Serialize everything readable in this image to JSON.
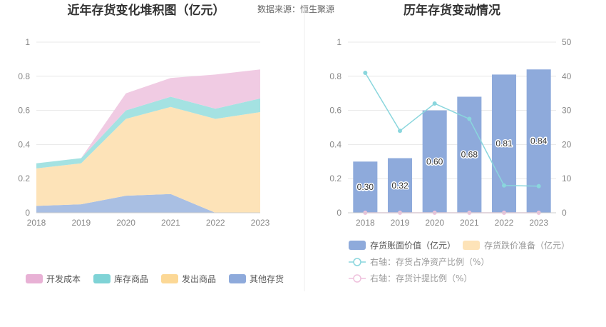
{
  "source_text": "数据来源：恒生聚源",
  "chart_data": [
    {
      "type": "area",
      "title": "近年存货变化堆积图（亿元）",
      "categories": [
        "2018",
        "2019",
        "2020",
        "2021",
        "2022",
        "2023"
      ],
      "ylim": [
        0,
        1
      ],
      "yticks": [
        "0",
        "0.2",
        "0.4",
        "0.6",
        "0.8",
        "1"
      ],
      "stacked": true,
      "grid": true,
      "legend_position": "bottom",
      "series": [
        {
          "name": "其他存货",
          "color": "#a9bfe3",
          "legend_color": "#8eaadb",
          "values": [
            0.04,
            0.05,
            0.1,
            0.11,
            0.0,
            0.0
          ]
        },
        {
          "name": "发出商品",
          "color": "#fde3b8",
          "legend_color": "#fcd896",
          "values": [
            0.22,
            0.24,
            0.45,
            0.51,
            0.55,
            0.59
          ]
        },
        {
          "name": "库存商品",
          "color": "#a4e2e2",
          "legend_color": "#7fd3d6",
          "values": [
            0.03,
            0.03,
            0.05,
            0.06,
            0.06,
            0.08
          ]
        },
        {
          "name": "开发成本",
          "color": "#f0cbe3",
          "legend_color": "#e8b1d5",
          "values": [
            0.0,
            0.0,
            0.1,
            0.11,
            0.2,
            0.17
          ]
        }
      ],
      "legend_order": [
        "开发成本",
        "库存商品",
        "发出商品",
        "其他存货"
      ]
    },
    {
      "type": "bar",
      "title": "历年存货变动情况",
      "categories": [
        "2018",
        "2019",
        "2020",
        "2021",
        "2022",
        "2023"
      ],
      "ylim": [
        0,
        1
      ],
      "yticks": [
        "0",
        "0.2",
        "0.4",
        "0.6",
        "0.8",
        "1"
      ],
      "y2lim": [
        0,
        50
      ],
      "y2ticks": [
        "0",
        "10",
        "20",
        "30",
        "40",
        "50"
      ],
      "grid": true,
      "legend_position": "bottom",
      "series": [
        {
          "name": "存货账面价值（亿元）",
          "kind": "bar",
          "axis": "left",
          "color": "#8eaadb",
          "values": [
            0.3,
            0.32,
            0.6,
            0.68,
            0.81,
            0.84
          ],
          "labels": [
            "0.30",
            "0.32",
            "0.60",
            "0.68",
            "0.81",
            "0.84"
          ]
        },
        {
          "name": "存货跌价准备（亿元）",
          "kind": "bar",
          "axis": "left",
          "color": "#fde3b8",
          "values": [
            0,
            0,
            0,
            0,
            0,
            0
          ]
        },
        {
          "name": "右轴：存货占净资产比例（%）",
          "kind": "line",
          "axis": "right",
          "color": "#8ad6dd",
          "values": [
            41,
            24,
            32,
            27.5,
            8,
            7.8
          ]
        },
        {
          "name": "右轴：存货计提比例（%）",
          "kind": "line",
          "axis": "right",
          "color": "#efc2dd",
          "values": [
            0,
            0,
            0,
            0,
            0,
            0
          ]
        }
      ]
    }
  ]
}
